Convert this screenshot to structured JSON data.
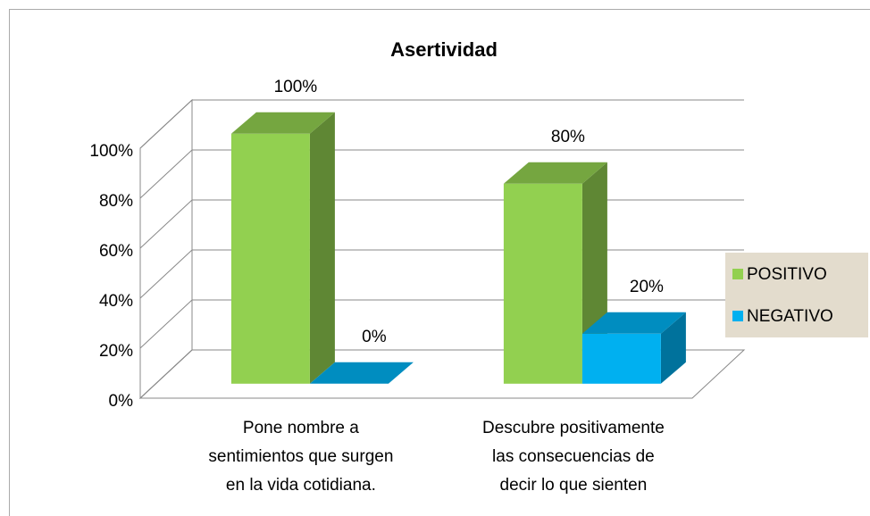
{
  "chart_data": {
    "type": "bar3d",
    "title": "Asertividad",
    "categories": [
      "Pone nombre a sentimientos que surgen en la vida cotidiana.",
      "Descubre positivamente las consecuencias de decir lo que sienten"
    ],
    "series": [
      {
        "name": "POSITIVO",
        "color": "#92d050",
        "values": [
          100,
          80
        ],
        "value_labels": [
          "100%",
          "80%"
        ]
      },
      {
        "name": "NEGATIVO",
        "color": "#00b0f0",
        "values": [
          0,
          20
        ],
        "value_labels": [
          "0%",
          "20%"
        ]
      }
    ],
    "ylim": [
      0,
      100
    ],
    "yticks": [
      {
        "value": 0,
        "label": "0%"
      },
      {
        "value": 20,
        "label": "20%"
      },
      {
        "value": 40,
        "label": "40%"
      },
      {
        "value": 60,
        "label": "60%"
      },
      {
        "value": 80,
        "label": "80%"
      },
      {
        "value": 100,
        "label": "100%"
      }
    ],
    "grid": true,
    "legend": "right"
  }
}
